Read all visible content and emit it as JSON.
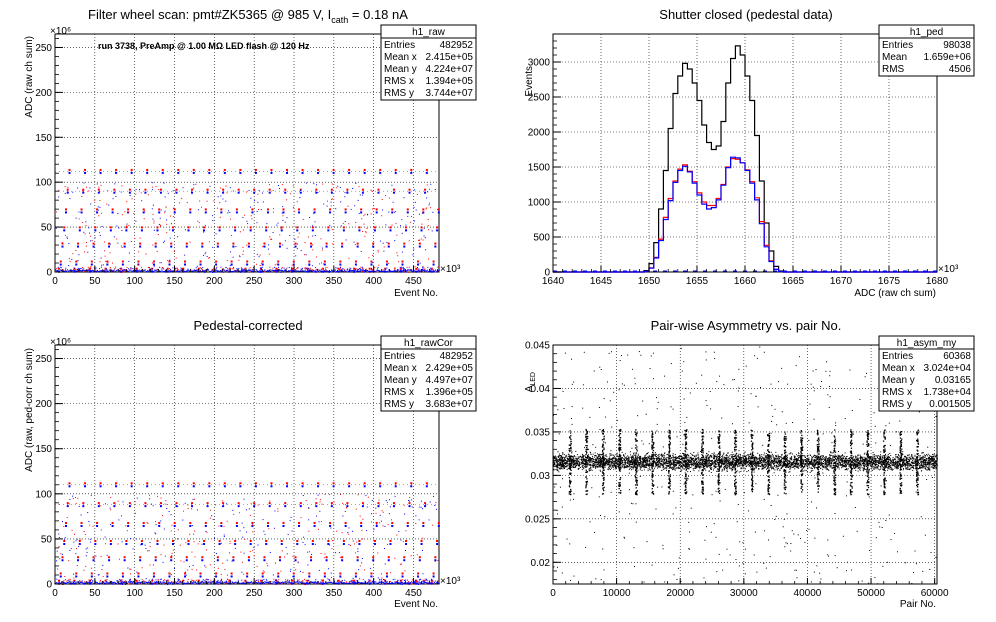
{
  "chart_data": [
    {
      "id": "raw",
      "type": "scatter",
      "title_main": "Filter wheel scan: pmt#ZK5365 @   985 V, I",
      "title_sub": "cath",
      "title_end": " = 0.18 nA",
      "xlabel": "Event No.",
      "ylabel": "ADC (raw ch sum)",
      "x_exponent": "×10³",
      "y_exponent": "×10⁶",
      "xlim": [
        0,
        482
      ],
      "ylim": [
        0,
        265
      ],
      "x_ticks": [
        0,
        50,
        100,
        150,
        200,
        250,
        300,
        350,
        400,
        450
      ],
      "x_tick_labels": [
        "0",
        "50",
        "100",
        "150",
        "200",
        "250",
        "300",
        "350",
        "400",
        "450"
      ],
      "y_ticks": [
        0,
        50,
        100,
        150,
        200,
        250
      ],
      "y_tick_labels": [
        "0",
        "50",
        "100",
        "150",
        "200",
        "250"
      ],
      "grid": true,
      "annotation": "run 3738, PreAmp @ 1.00 MΩ LED flash @  120 Hz",
      "levels": [
        2,
        10,
        30,
        48,
        68,
        90,
        112
      ],
      "stats": {
        "name": "h1_raw",
        "rows": [
          [
            "Entries",
            "482952"
          ],
          [
            "Mean x",
            "2.415e+05"
          ],
          [
            "Mean y",
            "4.224e+07"
          ],
          [
            "RMS x",
            "1.394e+05"
          ],
          [
            "RMS y",
            "3.744e+07"
          ]
        ]
      },
      "colors": {
        "red": "#ff0000",
        "blue": "#0000ff"
      }
    },
    {
      "id": "ped",
      "type": "histogram",
      "title": "Shutter closed (pedestal data)",
      "xlabel": "ADC (raw ch sum)",
      "ylabel": "Events",
      "x_exponent": "×10³",
      "xlim": [
        1640,
        1680
      ],
      "ylim": [
        0,
        3400
      ],
      "x_ticks": [
        1640,
        1645,
        1650,
        1655,
        1660,
        1665,
        1670,
        1675,
        1680
      ],
      "x_tick_labels": [
        "1640",
        "1645",
        "1650",
        "1655",
        "1660",
        "1665",
        "1670",
        "1675",
        "1680"
      ],
      "y_ticks": [
        0,
        500,
        1000,
        1500,
        2000,
        2500,
        3000
      ],
      "y_tick_labels": [
        "0",
        "500",
        "1000",
        "1500",
        "2000",
        "2500",
        "3000"
      ],
      "grid": true,
      "bin_start": 1649,
      "bin_width": 0.5,
      "series": [
        {
          "color": "#000000",
          "values": [
            0,
            20,
            120,
            420,
            900,
            1450,
            2050,
            2550,
            2800,
            2980,
            2900,
            2700,
            2450,
            2100,
            1850,
            1750,
            1800,
            2150,
            2700,
            3050,
            3230,
            3100,
            2800,
            2450,
            1950,
            1300,
            700,
            300,
            80,
            15
          ]
        },
        {
          "color": "#ff0000",
          "values": [
            0,
            10,
            60,
            210,
            470,
            780,
            1050,
            1300,
            1470,
            1530,
            1440,
            1290,
            1130,
            1000,
            950,
            950,
            1050,
            1250,
            1500,
            1620,
            1610,
            1560,
            1460,
            1290,
            1060,
            720,
            380,
            160,
            40,
            8
          ]
        },
        {
          "color": "#0000ff",
          "values": [
            0,
            10,
            55,
            200,
            450,
            750,
            1020,
            1280,
            1450,
            1510,
            1430,
            1270,
            1100,
            970,
            900,
            920,
            1030,
            1240,
            1490,
            1640,
            1630,
            1560,
            1450,
            1270,
            1030,
            690,
            360,
            150,
            38,
            7
          ]
        }
      ],
      "stats": {
        "name": "h1_ped",
        "rows": [
          [
            "Entries",
            "98038"
          ],
          [
            "Mean",
            "1.659e+06"
          ],
          [
            "RMS",
            "4506"
          ]
        ]
      }
    },
    {
      "id": "rawCor",
      "type": "scatter",
      "title": "Pedestal-corrected",
      "xlabel": "Event No.",
      "ylabel": "ADC (raw, ped-corr ch sum)",
      "x_exponent": "×10³",
      "y_exponent": "×10⁶",
      "xlim": [
        0,
        482
      ],
      "ylim": [
        0,
        265
      ],
      "x_ticks": [
        0,
        50,
        100,
        150,
        200,
        250,
        300,
        350,
        400,
        450
      ],
      "x_tick_labels": [
        "0",
        "50",
        "100",
        "150",
        "200",
        "250",
        "300",
        "350",
        "400",
        "450"
      ],
      "y_ticks": [
        0,
        50,
        100,
        150,
        200,
        250
      ],
      "y_tick_labels": [
        "0",
        "50",
        "100",
        "150",
        "200",
        "250"
      ],
      "grid": true,
      "levels": [
        2,
        10,
        28,
        46,
        66,
        88,
        110
      ],
      "stats": {
        "name": "h1_rawCor",
        "rows": [
          [
            "Entries",
            "482952"
          ],
          [
            "Mean x",
            "2.429e+05"
          ],
          [
            "Mean y",
            "4.497e+07"
          ],
          [
            "RMS x",
            "1.396e+05"
          ],
          [
            "RMS y",
            "3.683e+07"
          ]
        ]
      }
    },
    {
      "id": "asym",
      "type": "scatter",
      "title": "Pair-wise Asymmetry vs. pair No.",
      "xlabel": "Pair No.",
      "ylabel_main": "A",
      "ylabel_sub": "LED",
      "xlim": [
        0,
        60368
      ],
      "ylim": [
        0.0175,
        0.045
      ],
      "x_ticks": [
        0,
        10000,
        20000,
        30000,
        40000,
        50000,
        60000
      ],
      "x_tick_labels": [
        "0",
        "10000",
        "20000",
        "30000",
        "40000",
        "50000",
        "60000"
      ],
      "y_ticks": [
        0.02,
        0.025,
        0.03,
        0.035,
        0.04,
        0.045
      ],
      "y_tick_labels": [
        "0.02",
        "0.025",
        "0.03",
        "0.035",
        "0.04",
        "0.045"
      ],
      "grid": true,
      "band_center": 0.0316,
      "stats": {
        "name": "h1_asym_my",
        "rows": [
          [
            "Entries",
            "60368"
          ],
          [
            "Mean x",
            "3.024e+04"
          ],
          [
            "Mean y",
            "0.03165"
          ],
          [
            "RMS x",
            "1.738e+04"
          ],
          [
            "RMS y",
            "0.001505"
          ]
        ]
      }
    }
  ]
}
